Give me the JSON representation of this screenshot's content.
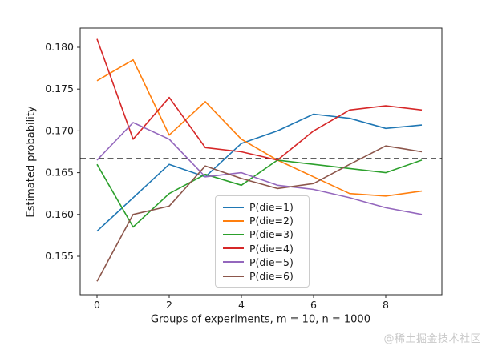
{
  "figure": {
    "background": "#ffffff",
    "watermark": {
      "text": "@稀土掘金技术社区",
      "color": "#c9c9c9"
    }
  },
  "chart_data": {
    "type": "line",
    "x": [
      0,
      1,
      2,
      3,
      4,
      5,
      6,
      7,
      8,
      9
    ],
    "series": [
      {
        "name": "P(die=1)",
        "color": "#1f77b4",
        "values": [
          0.158,
          0.162,
          0.166,
          0.1645,
          0.1685,
          0.17,
          0.172,
          0.1715,
          0.1703,
          0.1707
        ]
      },
      {
        "name": "P(die=2)",
        "color": "#ff7f0e",
        "values": [
          0.176,
          0.1785,
          0.1695,
          0.1735,
          0.169,
          0.1665,
          0.1645,
          0.1625,
          0.1622,
          0.1628
        ]
      },
      {
        "name": "P(die=3)",
        "color": "#2ca02c",
        "values": [
          0.166,
          0.1585,
          0.1625,
          0.1648,
          0.1635,
          0.1665,
          0.166,
          0.1655,
          0.165,
          0.1665
        ]
      },
      {
        "name": "P(die=4)",
        "color": "#d62728",
        "values": [
          0.181,
          0.169,
          0.174,
          0.168,
          0.1675,
          0.1665,
          0.17,
          0.1725,
          0.173,
          0.1725
        ]
      },
      {
        "name": "P(die=5)",
        "color": "#9467bd",
        "values": [
          0.1665,
          0.171,
          0.169,
          0.1645,
          0.165,
          0.1635,
          0.163,
          0.162,
          0.1608,
          0.16
        ]
      },
      {
        "name": "P(die=6)",
        "color": "#8c564b",
        "values": [
          0.152,
          0.16,
          0.161,
          0.1658,
          0.1643,
          0.1631,
          0.1637,
          0.166,
          0.1682,
          0.1675
        ]
      }
    ],
    "reference_line": {
      "value": 0.166667,
      "style": "dashed",
      "color": "#000000"
    },
    "title": "",
    "xlabel": "Groups of experiments, m = 10, n = 1000",
    "ylabel": "Estimated probability",
    "xticks": [
      0,
      2,
      4,
      6,
      8
    ],
    "xtick_labels": [
      "0",
      "2",
      "4",
      "6",
      "8"
    ],
    "yticks": [
      0.155,
      0.16,
      0.165,
      0.17,
      0.175,
      0.18
    ],
    "ytick_labels": [
      "0.155",
      "0.160",
      "0.165",
      "0.170",
      "0.175",
      "0.180"
    ],
    "xlim": [
      -0.47,
      9.56
    ],
    "ylim": [
      0.1504,
      0.1823
    ],
    "grid": false,
    "legend": {
      "position": "inside lower-center",
      "entries": [
        "P(die=1)",
        "P(die=2)",
        "P(die=3)",
        "P(die=4)",
        "P(die=5)",
        "P(die=6)"
      ]
    }
  }
}
